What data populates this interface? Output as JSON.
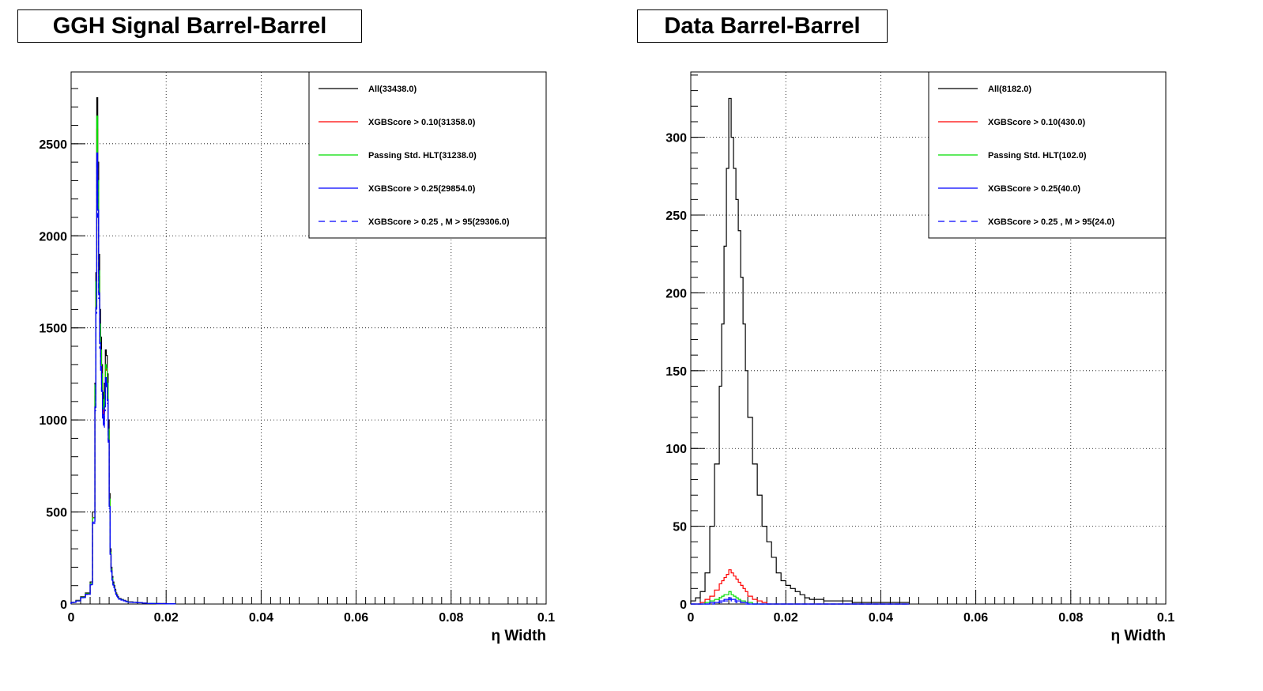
{
  "chart_data": [
    {
      "type": "histogram",
      "title": "GGH Signal Barrel-Barrel",
      "xlabel": "η Width",
      "ylabel": "",
      "xlim": [
        0,
        0.1
      ],
      "ylim": [
        0,
        2890
      ],
      "x_ticks": [
        "0",
        "0.02",
        "0.04",
        "0.06",
        "0.08",
        "0.1"
      ],
      "y_ticks": [
        "0",
        "500",
        "1000",
        "1500",
        "2000",
        "2500"
      ],
      "y_tick_values": [
        0,
        500,
        1000,
        1500,
        2000,
        2500
      ],
      "grid": true,
      "legend_position": "top-right",
      "bin_edges": [
        0,
        0.001,
        0.002,
        0.003,
        0.004,
        0.0045,
        0.005,
        0.0052,
        0.0054,
        0.0056,
        0.0058,
        0.006,
        0.0062,
        0.0064,
        0.0066,
        0.0068,
        0.007,
        0.0072,
        0.0074,
        0.0076,
        0.0078,
        0.008,
        0.0082,
        0.0084,
        0.0086,
        0.0088,
        0.009,
        0.0092,
        0.0094,
        0.0096,
        0.0098,
        0.01,
        0.0105,
        0.011,
        0.0115,
        0.012,
        0.013,
        0.014,
        0.015,
        0.016,
        0.018,
        0.02,
        0.022
      ],
      "series": [
        {
          "name": "All(33438.0)",
          "color": "#000000",
          "dash": "solid",
          "values": [
            10,
            20,
            40,
            60,
            120,
            500,
            1200,
            1800,
            2750,
            2400,
            1900,
            1600,
            1450,
            1300,
            1150,
            1100,
            1200,
            1380,
            1350,
            1250,
            1000,
            600,
            300,
            200,
            150,
            120,
            100,
            80,
            60,
            50,
            40,
            30,
            25,
            20,
            15,
            12,
            10,
            8,
            6,
            4,
            2,
            1
          ]
        },
        {
          "name": "XGBScore > 0.10(31358.0)",
          "color": "#ff0000",
          "dash": "solid",
          "values": [
            9,
            18,
            37,
            56,
            112,
            470,
            1130,
            1690,
            2580,
            2250,
            1780,
            1500,
            1360,
            1220,
            1080,
            1030,
            1120,
            1290,
            1270,
            1170,
            940,
            560,
            280,
            190,
            140,
            110,
            94,
            75,
            56,
            47,
            38,
            28,
            23,
            19,
            14,
            11,
            9,
            7,
            6,
            4,
            2,
            1
          ]
        },
        {
          "name": "Passing Std. HLT(31238.0)",
          "color": "#00dd00",
          "dash": "solid",
          "values": [
            9,
            18,
            37,
            56,
            112,
            468,
            1190,
            1750,
            2650,
            2300,
            1810,
            1520,
            1380,
            1250,
            1110,
            1060,
            1150,
            1300,
            1280,
            1200,
            950,
            570,
            280,
            190,
            140,
            110,
            93,
            74,
            56,
            46,
            37,
            28,
            23,
            18,
            14,
            11,
            9,
            7,
            5,
            4,
            2,
            1
          ]
        },
        {
          "name": "XGBScore > 0.25(29854.0)",
          "color": "#0000ff",
          "dash": "solid",
          "values": [
            9,
            17,
            35,
            53,
            106,
            445,
            1070,
            1610,
            2450,
            2140,
            1690,
            1420,
            1290,
            1160,
            1030,
            980,
            1070,
            1230,
            1200,
            1110,
            890,
            530,
            270,
            180,
            130,
            105,
            89,
            71,
            53,
            44,
            35,
            27,
            22,
            18,
            13,
            10,
            9,
            7,
            5,
            3,
            2,
            1
          ]
        },
        {
          "name": "XGBScore > 0.25 , M > 95(29306.0)",
          "color": "#0000ff",
          "dash": "dashed",
          "values": [
            8,
            17,
            34,
            52,
            104,
            437,
            1050,
            1580,
            2400,
            2100,
            1660,
            1390,
            1270,
            1140,
            1010,
            960,
            1050,
            1210,
            1180,
            1090,
            870,
            520,
            265,
            175,
            130,
            103,
            87,
            70,
            52,
            43,
            34,
            26,
            21,
            17,
            13,
            10,
            8,
            7,
            5,
            3,
            2,
            1
          ]
        }
      ]
    },
    {
      "type": "histogram",
      "title": "Data Barrel-Barrel",
      "xlabel": "η Width",
      "ylabel": "",
      "xlim": [
        0,
        0.1
      ],
      "ylim": [
        0,
        342
      ],
      "x_ticks": [
        "0",
        "0.02",
        "0.04",
        "0.06",
        "0.08",
        "0.1"
      ],
      "y_ticks": [
        "0",
        "50",
        "100",
        "150",
        "200",
        "250",
        "300"
      ],
      "y_tick_values": [
        0,
        50,
        100,
        150,
        200,
        250,
        300
      ],
      "grid": true,
      "legend_position": "top-right",
      "bin_edges": [
        0,
        0.001,
        0.002,
        0.003,
        0.004,
        0.005,
        0.006,
        0.0065,
        0.007,
        0.0075,
        0.008,
        0.0085,
        0.009,
        0.0095,
        0.01,
        0.0105,
        0.011,
        0.0115,
        0.012,
        0.013,
        0.014,
        0.015,
        0.016,
        0.017,
        0.018,
        0.019,
        0.02,
        0.021,
        0.022,
        0.023,
        0.024,
        0.025,
        0.026,
        0.028,
        0.03,
        0.034,
        0.04,
        0.046
      ],
      "series": [
        {
          "name": "All(8182.0)",
          "color": "#000000",
          "dash": "solid",
          "values": [
            2,
            4,
            8,
            20,
            50,
            90,
            140,
            180,
            230,
            280,
            325,
            300,
            280,
            260,
            240,
            210,
            180,
            150,
            120,
            90,
            70,
            50,
            40,
            30,
            20,
            15,
            12,
            10,
            8,
            6,
            4,
            3,
            3,
            2,
            2,
            1,
            1
          ]
        },
        {
          "name": "XGBScore > 0.10(430.0)",
          "color": "#ff0000",
          "dash": "solid",
          "values": [
            0,
            0,
            1,
            3,
            5,
            9,
            13,
            15,
            17,
            19,
            22,
            20,
            18,
            16,
            14,
            12,
            10,
            8,
            5,
            3,
            2,
            1,
            0,
            0,
            0,
            0,
            0,
            0,
            0,
            0,
            0,
            0,
            0,
            0,
            0,
            0,
            0
          ]
        },
        {
          "name": "Passing Std. HLT(102.0)",
          "color": "#00dd00",
          "dash": "solid",
          "values": [
            0,
            0,
            0,
            1,
            2,
            3,
            4,
            5,
            6,
            6,
            8,
            6,
            5,
            4,
            3,
            2,
            2,
            1,
            1,
            0,
            0,
            0,
            0,
            0,
            0,
            0,
            0,
            0,
            0,
            0,
            0,
            0,
            0,
            0,
            0,
            0,
            0
          ]
        },
        {
          "name": "XGBScore > 0.25(40.0)",
          "color": "#0000ff",
          "dash": "solid",
          "values": [
            0,
            0,
            0,
            0,
            1,
            1,
            2,
            2,
            3,
            3,
            4,
            3,
            3,
            2,
            2,
            1,
            1,
            1,
            0,
            0,
            0,
            0,
            0,
            0,
            0,
            0,
            0,
            0,
            0,
            0,
            0,
            0,
            0,
            0,
            0,
            0,
            0
          ]
        },
        {
          "name": "XGBScore > 0.25 , M > 95(24.0)",
          "color": "#0000ff",
          "dash": "dashed",
          "values": [
            0,
            0,
            0,
            0,
            0,
            1,
            1,
            1,
            2,
            2,
            3,
            2,
            2,
            1,
            1,
            1,
            1,
            0,
            0,
            0,
            0,
            0,
            0,
            0,
            0,
            0,
            0,
            0,
            0,
            0,
            0,
            0,
            0,
            0,
            0,
            0,
            0
          ]
        }
      ]
    }
  ]
}
